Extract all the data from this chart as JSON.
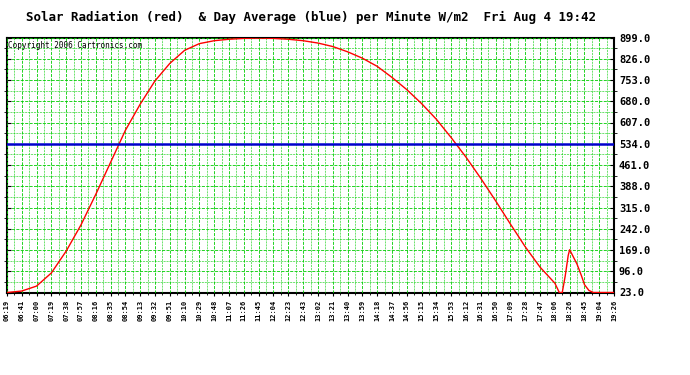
{
  "title": "Solar Radiation (red)  & Day Average (blue) per Minute W/m2  Fri Aug 4 19:42",
  "copyright": "Copyright 2006 Cartronics.com",
  "y_min": 23.0,
  "y_max": 899.0,
  "y_ticks": [
    23.0,
    96.0,
    169.0,
    242.0,
    315.0,
    388.0,
    461.0,
    534.0,
    607.0,
    680.0,
    753.0,
    826.0,
    899.0
  ],
  "day_average": 534.0,
  "x_labels": [
    "06:19",
    "06:41",
    "07:00",
    "07:19",
    "07:38",
    "07:57",
    "08:16",
    "08:35",
    "08:54",
    "09:13",
    "09:32",
    "09:51",
    "10:10",
    "10:29",
    "10:48",
    "11:07",
    "11:26",
    "11:45",
    "12:04",
    "12:23",
    "12:43",
    "13:02",
    "13:21",
    "13:40",
    "13:59",
    "14:18",
    "14:37",
    "14:56",
    "15:15",
    "15:34",
    "15:53",
    "16:12",
    "16:31",
    "16:50",
    "17:09",
    "17:28",
    "17:47",
    "18:06",
    "18:26",
    "18:45",
    "19:04",
    "19:26"
  ],
  "solar_curve_x": [
    0,
    1,
    2,
    3,
    4,
    5,
    6,
    7,
    8,
    9,
    10,
    11,
    12,
    13,
    14,
    15,
    16,
    17,
    18,
    19,
    20,
    21,
    22,
    23,
    24,
    25,
    26,
    27,
    28,
    29,
    30,
    31,
    32,
    33,
    34,
    35,
    36,
    37,
    37.3,
    37.5,
    37.7,
    37.9,
    38.0,
    38.2,
    38.5,
    38.8,
    39,
    39.3,
    39.6,
    40,
    41
  ],
  "solar_curve_y": [
    23,
    28,
    45,
    90,
    165,
    255,
    360,
    470,
    580,
    670,
    750,
    810,
    855,
    878,
    888,
    893,
    896,
    897,
    896,
    893,
    888,
    880,
    868,
    850,
    828,
    800,
    762,
    720,
    672,
    618,
    555,
    488,
    415,
    338,
    258,
    180,
    110,
    55,
    23,
    23,
    80,
    150,
    170,
    150,
    120,
    80,
    50,
    30,
    23,
    23,
    23
  ],
  "grid_color": "#00cc00",
  "line_color_red": "#ff0000",
  "line_color_blue": "#0000cc",
  "bg_color": "#ffffff",
  "border_color": "#000000",
  "title_color": "#000000",
  "copyright_color": "#000000",
  "figwidth": 6.9,
  "figheight": 3.75,
  "dpi": 100
}
